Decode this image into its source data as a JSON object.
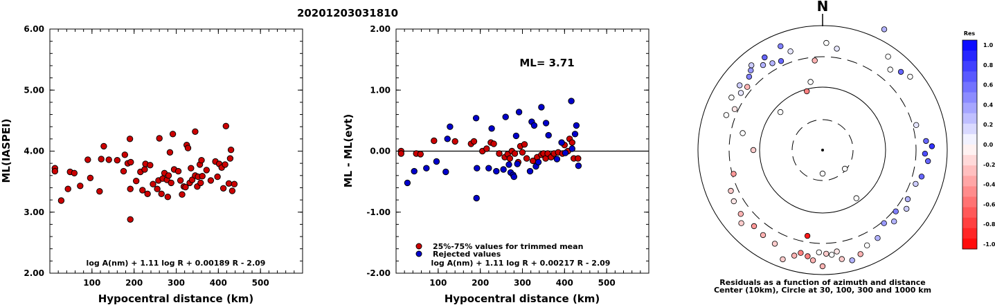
{
  "title": "20201203031810",
  "chart_data": [
    {
      "type": "scatter",
      "xlabel": "Hypocentral distance (km)",
      "ylabel": "ML(IASPEI)",
      "xlim": [
        0,
        600
      ],
      "ylim": [
        2.0,
        6.0
      ],
      "xticks": [
        "100",
        "200",
        "300",
        "400",
        "500"
      ],
      "yticks": [
        "2.00",
        "3.00",
        "4.00",
        "5.00",
        "6.00"
      ],
      "annotation": "log A(nm) + 1.11 log R + 0.00189 R - 2.09",
      "series": [
        {
          "color": "#cc0000",
          "points": [
            [
              12,
              3.72
            ],
            [
              12,
              3.67
            ],
            [
              27,
              3.19
            ],
            [
              43,
              3.38
            ],
            [
              48,
              3.66
            ],
            [
              58,
              3.64
            ],
            [
              72,
              3.43
            ],
            [
              90,
              3.86
            ],
            [
              96,
              3.56
            ],
            [
              118,
              3.34
            ],
            [
              122,
              3.87
            ],
            [
              128,
              4.08
            ],
            [
              140,
              3.86
            ],
            [
              160,
              3.85
            ],
            [
              175,
              3.67
            ],
            [
              178,
              3.94
            ],
            [
              185,
              3.8
            ],
            [
              190,
              4.2
            ],
            [
              191,
              2.88
            ],
            [
              191,
              3.38
            ],
            [
              192,
              3.82
            ],
            [
              205,
              3.51
            ],
            [
              215,
              3.66
            ],
            [
              220,
              3.36
            ],
            [
              225,
              3.7
            ],
            [
              227,
              3.79
            ],
            [
              232,
              3.3
            ],
            [
              238,
              3.77
            ],
            [
              245,
              3.46
            ],
            [
              255,
              3.38
            ],
            [
              258,
              3.52
            ],
            [
              260,
              4.21
            ],
            [
              265,
              3.3
            ],
            [
              268,
              3.55
            ],
            [
              272,
              3.64
            ],
            [
              278,
              3.53
            ],
            [
              280,
              3.25
            ],
            [
              282,
              3.6
            ],
            [
              285,
              3.98
            ],
            [
              288,
              3.48
            ],
            [
              292,
              4.28
            ],
            [
              295,
              3.7
            ],
            [
              305,
              3.67
            ],
            [
              310,
              3.52
            ],
            [
              314,
              3.29
            ],
            [
              318,
              3.42
            ],
            [
              322,
              3.41
            ],
            [
              325,
              4.1
            ],
            [
              328,
              4.05
            ],
            [
              332,
              3.48
            ],
            [
              335,
              3.72
            ],
            [
              338,
              3.53
            ],
            [
              345,
              4.32
            ],
            [
              345,
              3.6
            ],
            [
              350,
              3.42
            ],
            [
              352,
              3.58
            ],
            [
              356,
              3.78
            ],
            [
              358,
              3.48
            ],
            [
              360,
              3.85
            ],
            [
              362,
              3.59
            ],
            [
              372,
              3.69
            ],
            [
              382,
              3.52
            ],
            [
              393,
              3.83
            ],
            [
              398,
              3.58
            ],
            [
              402,
              3.79
            ],
            [
              408,
              3.73
            ],
            [
              412,
              3.39
            ],
            [
              416,
              3.78
            ],
            [
              418,
              4.41
            ],
            [
              425,
              3.47
            ],
            [
              428,
              3.88
            ],
            [
              430,
              4.02
            ],
            [
              433,
              3.35
            ],
            [
              438,
              3.46
            ]
          ]
        }
      ]
    },
    {
      "type": "scatter",
      "xlabel": "Hypocentral distance (km)",
      "ylabel": "ML - ML(evt)",
      "xlim": [
        0,
        600
      ],
      "ylim": [
        -2.0,
        2.0
      ],
      "xticks": [
        "100",
        "200",
        "300",
        "400",
        "500"
      ],
      "yticks": [
        "-2.00",
        "-1.00",
        "0.00",
        "1.00",
        "2.00"
      ],
      "reference_line": 0.0,
      "ml_label": "ML= 3.71",
      "legend": [
        "25%-75% values for trimmed mean",
        "Rejected values"
      ],
      "annotation": "log A(nm) + 1.11 log R + 0.00217 R - 2.09",
      "series": [
        {
          "name": "25%-75% values for trimmed mean",
          "color": "#cc0000",
          "points": [
            [
              12,
              0.0
            ],
            [
              12,
              -0.04
            ],
            [
              48,
              -0.04
            ],
            [
              58,
              -0.05
            ],
            [
              90,
              0.17
            ],
            [
              140,
              0.16
            ],
            [
              178,
              0.12
            ],
            [
              185,
              0.16
            ],
            [
              205,
              0.0
            ],
            [
              215,
              0.04
            ],
            [
              225,
              0.14
            ],
            [
              232,
              0.12
            ],
            [
              245,
              -0.04
            ],
            [
              258,
              -0.1
            ],
            [
              265,
              -0.05
            ],
            [
              270,
              -0.12
            ],
            [
              275,
              0.0
            ],
            [
              282,
              -0.04
            ],
            [
              290,
              -0.18
            ],
            [
              295,
              0.08
            ],
            [
              300,
              -0.02
            ],
            [
              305,
              0.11
            ],
            [
              310,
              -0.12
            ],
            [
              325,
              -0.16
            ],
            [
              335,
              -0.1
            ],
            [
              345,
              -0.06
            ],
            [
              350,
              -0.04
            ],
            [
              355,
              -0.12
            ],
            [
              360,
              -0.04
            ],
            [
              368,
              -0.1
            ],
            [
              375,
              -0.04
            ],
            [
              385,
              -0.02
            ],
            [
              395,
              -0.04
            ],
            [
              400,
              0.1
            ],
            [
              408,
              0.0
            ],
            [
              412,
              0.2
            ],
            [
              418,
              0.14
            ],
            [
              422,
              -0.12
            ],
            [
              432,
              -0.12
            ]
          ]
        },
        {
          "name": "Rejected values",
          "color": "#0000cc",
          "points": [
            [
              27,
              -0.52
            ],
            [
              43,
              -0.33
            ],
            [
              72,
              -0.28
            ],
            [
              96,
              -0.17
            ],
            [
              118,
              -0.34
            ],
            [
              122,
              0.2
            ],
            [
              128,
              0.4
            ],
            [
              190,
              0.54
            ],
            [
              191,
              -0.77
            ],
            [
              192,
              -0.28
            ],
            [
              220,
              -0.28
            ],
            [
              227,
              0.37
            ],
            [
              238,
              -0.33
            ],
            [
              255,
              -0.3
            ],
            [
              260,
              0.56
            ],
            [
              268,
              -0.22
            ],
            [
              272,
              -0.35
            ],
            [
              278,
              -0.39
            ],
            [
              280,
              -0.42
            ],
            [
              285,
              0.25
            ],
            [
              288,
              -0.21
            ],
            [
              292,
              0.64
            ],
            [
              318,
              -0.33
            ],
            [
              322,
              0.48
            ],
            [
              328,
              0.42
            ],
            [
              332,
              -0.25
            ],
            [
              338,
              -0.18
            ],
            [
              345,
              0.72
            ],
            [
              356,
              0.46
            ],
            [
              362,
              0.26
            ],
            [
              382,
              -0.13
            ],
            [
              393,
              0.14
            ],
            [
              402,
              -0.03
            ],
            [
              416,
              0.82
            ],
            [
              418,
              0.04
            ],
            [
              425,
              0.28
            ],
            [
              428,
              0.42
            ],
            [
              433,
              -0.24
            ]
          ]
        }
      ]
    }
  ],
  "polar": {
    "north": "N",
    "caption1": "Residuals as a function of azimuth and distance",
    "caption2": "Center (10km), Circle at 30, 100, 300 and 1000 km",
    "points": [
      [
        2,
        155,
        0.0
      ],
      [
        8,
        148,
        0.1
      ],
      [
        27,
        196,
        0.3
      ],
      [
        35,
        165,
        0.0
      ],
      [
        40,
        152,
        0.0
      ],
      [
        45,
        160,
        0.6
      ],
      [
        50,
        165,
        0.0
      ],
      [
        75,
        140,
        0.1
      ],
      [
        85,
        150,
        0.6
      ],
      [
        88,
        158,
        0.8
      ],
      [
        92,
        148,
        0.7
      ],
      [
        96,
        153,
        0.6
      ],
      [
        105,
        148,
        0.6
      ],
      [
        110,
        143,
        0.2
      ],
      [
        120,
        142,
        0.3
      ],
      [
        125,
        148,
        0.2
      ],
      [
        130,
        138,
        0.5
      ],
      [
        135,
        146,
        0.3
      ],
      [
        140,
        138,
        0.4
      ],
      [
        148,
        150,
        0.3
      ],
      [
        155,
        152,
        0.0
      ],
      [
        160,
        160,
        -0.3
      ],
      [
        165,
        165,
        0.3
      ],
      [
        170,
        160,
        -0.2
      ],
      [
        172,
        148,
        -0.1
      ],
      [
        175,
        152,
        0.0
      ],
      [
        178,
        150,
        -0.2
      ],
      [
        180,
        168,
        -0.3
      ],
      [
        182,
        148,
        0.0
      ],
      [
        185,
        160,
        -0.3
      ],
      [
        188,
        155,
        -0.5
      ],
      [
        190,
        126,
        -0.9
      ],
      [
        192,
        152,
        -0.5
      ],
      [
        195,
        158,
        -0.3
      ],
      [
        200,
        168,
        -0.2
      ],
      [
        207,
        152,
        -0.2
      ],
      [
        215,
        150,
        -0.3
      ],
      [
        222,
        148,
        -0.4
      ],
      [
        228,
        158,
        -0.2
      ],
      [
        232,
        150,
        -0.3
      ],
      [
        240,
        148,
        -0.1
      ],
      [
        246,
        145,
        -0.2
      ],
      [
        255,
        133,
        -0.4
      ],
      [
        270,
        100,
        -0.2
      ],
      [
        282,
        118,
        0.0
      ],
      [
        290,
        148,
        0.0
      ],
      [
        295,
        140,
        -0.1
      ],
      [
        300,
        152,
        0.0
      ],
      [
        305,
        144,
        0.1
      ],
      [
        308,
        152,
        0.2
      ],
      [
        310,
        142,
        -0.3
      ],
      [
        315,
        150,
        0.5
      ],
      [
        318,
        155,
        0.4
      ],
      [
        320,
        160,
        0.2
      ],
      [
        325,
        150,
        0.3
      ],
      [
        328,
        158,
        0.6
      ],
      [
        330,
        145,
        0.3
      ],
      [
        335,
        142,
        0.6
      ],
      [
        338,
        162,
        0.5
      ],
      [
        342,
        150,
        0.1
      ],
      [
        345,
        88,
        -0.5
      ],
      [
        350,
        100,
        0.0
      ],
      [
        355,
        130,
        -0.3
      ],
      [
        180,
        34,
        0.0
      ],
      [
        130,
        42,
        0.0
      ],
      [
        145,
        85,
        0.0
      ],
      [
        312,
        82,
        0.0
      ]
    ],
    "colorbar": {
      "title": "Res",
      "labels": [
        "1.0",
        "0.8",
        "0.6",
        "0.4",
        "0.2",
        "0.0",
        "-0.2",
        "-0.4",
        "-0.6",
        "-0.8",
        "-1.0"
      ]
    }
  }
}
